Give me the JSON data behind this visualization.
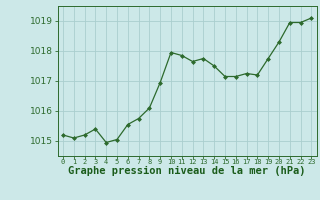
{
  "x": [
    0,
    1,
    2,
    3,
    4,
    5,
    6,
    7,
    8,
    9,
    10,
    11,
    12,
    13,
    14,
    15,
    16,
    17,
    18,
    19,
    20,
    21,
    22,
    23
  ],
  "y": [
    1015.2,
    1015.1,
    1015.2,
    1015.4,
    1014.95,
    1015.05,
    1015.55,
    1015.75,
    1016.1,
    1016.95,
    1017.95,
    1017.85,
    1017.65,
    1017.75,
    1017.5,
    1017.15,
    1017.15,
    1017.25,
    1017.2,
    1017.75,
    1018.3,
    1018.95,
    1018.95,
    1019.1
  ],
  "line_color": "#2d6a2d",
  "marker_color": "#2d6a2d",
  "bg_color": "#cce8e8",
  "grid_color": "#aacece",
  "xlabel": "Graphe pression niveau de la mer (hPa)",
  "xlabel_color": "#1a5c1a",
  "xlabel_fontsize": 7.5,
  "ylabel_fontsize": 6.5,
  "tick_color": "#2d6a2d",
  "ylim": [
    1014.5,
    1019.5
  ],
  "yticks": [
    1015,
    1016,
    1017,
    1018,
    1019
  ],
  "xticks": [
    0,
    1,
    2,
    3,
    4,
    5,
    6,
    7,
    8,
    9,
    10,
    11,
    12,
    13,
    14,
    15,
    16,
    17,
    18,
    19,
    20,
    21,
    22,
    23
  ]
}
